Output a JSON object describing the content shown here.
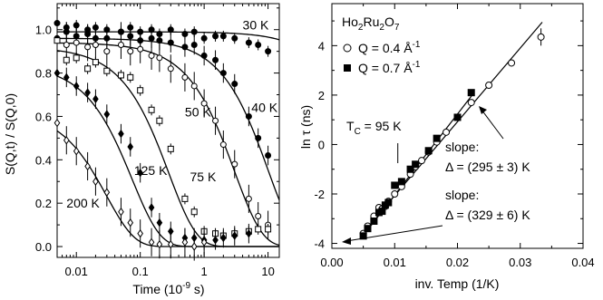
{
  "chart_data": [
    {
      "type": "scatter",
      "xlabel": "Time (10",
      "xlabel_sup": "-9",
      "xlabel_tail": " s)",
      "ylabel": "S(Q,t) / S(Q,0)",
      "xscale": "log",
      "xlim": [
        0.005,
        15
      ],
      "ylim": [
        -0.05,
        1.12
      ],
      "x_ticks": [
        0.01,
        0.1,
        1,
        10
      ],
      "x_tick_labels": [
        "0.01",
        "0.1",
        "1",
        "10"
      ],
      "y_ticks": [
        0.0,
        0.2,
        0.4,
        0.6,
        0.8,
        1.0
      ],
      "y_tick_labels": [
        "0.0",
        "0.2",
        "0.4",
        "0.6",
        "0.8",
        "1.0"
      ],
      "series": [
        {
          "name": "30 K",
          "marker": "filled-circle",
          "label": "30 K",
          "label_at": [
            4.0,
            1.0
          ],
          "fit": {
            "a": 0.99,
            "tau": 400,
            "beta": 1
          },
          "points": [
            [
              0.005,
              1.03
            ],
            [
              0.007,
              1.01
            ],
            [
              0.01,
              1.02
            ],
            [
              0.015,
              1.0
            ],
            [
              0.02,
              1.01
            ],
            [
              0.03,
              1.0
            ],
            [
              0.05,
              0.99
            ],
            [
              0.07,
              1.01
            ],
            [
              0.1,
              0.99
            ],
            [
              0.15,
              1.0
            ],
            [
              0.2,
              0.98
            ],
            [
              0.3,
              1.0
            ],
            [
              0.5,
              0.98
            ],
            [
              0.7,
              0.99
            ],
            [
              1.0,
              0.96
            ],
            [
              1.5,
              0.97
            ],
            [
              2.0,
              0.97
            ],
            [
              3.0,
              0.96
            ],
            [
              5.0,
              0.94
            ],
            [
              7.0,
              0.93
            ],
            [
              10.0,
              0.9
            ]
          ]
        },
        {
          "name": "40 K",
          "marker": "filled-circle",
          "label": "40 K",
          "label_at": [
            5.5,
            0.62
          ],
          "fit": {
            "a": 0.96,
            "tau": 10,
            "beta": 1
          },
          "points": [
            [
              0.005,
              0.96
            ],
            [
              0.007,
              0.99
            ],
            [
              0.01,
              0.97
            ],
            [
              0.015,
              0.98
            ],
            [
              0.02,
              0.96
            ],
            [
              0.03,
              0.96
            ],
            [
              0.05,
              0.99
            ],
            [
              0.07,
              0.97
            ],
            [
              0.1,
              0.95
            ],
            [
              0.15,
              0.96
            ],
            [
              0.2,
              0.95
            ],
            [
              0.3,
              0.94
            ],
            [
              0.5,
              0.92
            ],
            [
              0.7,
              0.93
            ],
            [
              1.0,
              0.88
            ],
            [
              1.5,
              0.86
            ],
            [
              2.0,
              0.8
            ],
            [
              3.0,
              0.75
            ],
            [
              5.0,
              0.6
            ],
            [
              7.0,
              0.5
            ],
            [
              10.0,
              0.42
            ]
          ]
        },
        {
          "name": "50 K",
          "marker": "open-circle",
          "label": "50 K",
          "label_at": [
            0.5,
            0.6
          ],
          "fit": {
            "a": 0.94,
            "tau": 3,
            "beta": 1
          },
          "points": [
            [
              0.005,
              0.95
            ],
            [
              0.007,
              0.93
            ],
            [
              0.01,
              0.94
            ],
            [
              0.015,
              0.92
            ],
            [
              0.02,
              0.93
            ],
            [
              0.03,
              0.9
            ],
            [
              0.05,
              0.93
            ],
            [
              0.07,
              0.9
            ],
            [
              0.1,
              0.91
            ],
            [
              0.15,
              0.88
            ],
            [
              0.2,
              0.87
            ],
            [
              0.3,
              0.82
            ],
            [
              0.5,
              0.78
            ],
            [
              0.7,
              0.74
            ],
            [
              1.0,
              0.66
            ],
            [
              1.5,
              0.58
            ],
            [
              2.0,
              0.47
            ],
            [
              3.0,
              0.38
            ],
            [
              5.0,
              0.22
            ],
            [
              7.0,
              0.14
            ],
            [
              10.0,
              0.1
            ]
          ]
        },
        {
          "name": "75 K",
          "marker": "open-square",
          "label": "75 K",
          "label_at": [
            0.6,
            0.3
          ],
          "fit": {
            "a": 0.92,
            "tau": 0.28,
            "beta": 1
          },
          "points": [
            [
              0.005,
              0.95
            ],
            [
              0.007,
              0.86
            ],
            [
              0.01,
              0.87
            ],
            [
              0.015,
              0.82
            ],
            [
              0.02,
              0.85
            ],
            [
              0.03,
              0.81
            ],
            [
              0.05,
              0.79
            ],
            [
              0.07,
              0.78
            ],
            [
              0.1,
              0.72
            ],
            [
              0.15,
              0.63
            ],
            [
              0.2,
              0.58
            ],
            [
              0.3,
              0.45
            ],
            [
              0.5,
              0.22
            ],
            [
              0.7,
              0.16
            ],
            [
              1.0,
              0.07
            ],
            [
              1.5,
              0.06
            ],
            [
              2.0,
              0.05
            ],
            [
              3.0,
              0.06
            ],
            [
              5.0,
              0.07
            ],
            [
              7.0,
              0.08
            ],
            [
              10.0,
              0.08
            ]
          ]
        },
        {
          "name": "125 K",
          "marker": "filled-diamond",
          "label": "125 K",
          "label_at": [
            0.08,
            0.33
          ],
          "fit": {
            "a": 0.84,
            "tau": 0.075,
            "beta": 1
          },
          "points": [
            [
              0.005,
              0.8
            ],
            [
              0.007,
              0.78
            ],
            [
              0.01,
              0.74
            ],
            [
              0.015,
              0.71
            ],
            [
              0.02,
              0.68
            ],
            [
              0.03,
              0.61
            ],
            [
              0.05,
              0.52
            ],
            [
              0.07,
              0.46
            ],
            [
              0.1,
              0.34
            ],
            [
              0.15,
              0.18
            ],
            [
              0.2,
              0.11
            ],
            [
              0.3,
              0.07
            ],
            [
              0.5,
              0.04
            ],
            [
              0.7,
              0.04
            ],
            [
              1.0,
              0.03
            ],
            [
              1.5,
              0.03
            ],
            [
              2.0,
              0.04
            ],
            [
              3.0,
              0.05
            ],
            [
              5.0,
              0.06
            ]
          ]
        },
        {
          "name": "200 K",
          "marker": "open-diamond",
          "label": "200 K",
          "label_at": [
            0.007,
            0.18
          ],
          "fit": {
            "a": 0.63,
            "tau": 0.03,
            "beta": 1
          },
          "points": [
            [
              0.005,
              0.57
            ],
            [
              0.007,
              0.49
            ],
            [
              0.01,
              0.44
            ],
            [
              0.015,
              0.37
            ],
            [
              0.02,
              0.3
            ],
            [
              0.03,
              0.25
            ],
            [
              0.05,
              0.16
            ],
            [
              0.07,
              0.11
            ],
            [
              0.1,
              0.06
            ],
            [
              0.15,
              0.02
            ],
            [
              0.2,
              0.01
            ],
            [
              0.3,
              0.01
            ],
            [
              0.5,
              0.02
            ],
            [
              0.7,
              0.0
            ],
            [
              1.0,
              0.02
            ]
          ]
        }
      ]
    },
    {
      "type": "scatter",
      "xlabel": "inv. Temp (1/K)",
      "ylabel": "ln τ (ns)",
      "xlim": [
        0.0,
        0.04
      ],
      "ylim": [
        -4.2,
        5.7
      ],
      "x_ticks": [
        0.0,
        0.01,
        0.02,
        0.03,
        0.04
      ],
      "x_tick_labels": [
        "0.00",
        "0.01",
        "0.02",
        "0.03",
        "0.04"
      ],
      "y_ticks": [
        -4,
        -2,
        0,
        2,
        4
      ],
      "y_tick_labels": [
        "-4",
        "-2",
        "0",
        "2",
        "4"
      ],
      "title_parts": [
        "Ho",
        "2",
        "Ru",
        "2",
        "O",
        "7"
      ],
      "legend": [
        {
          "marker": "open-circle",
          "label": "Q = 0.4 Å",
          "sup": "-1"
        },
        {
          "marker": "filled-square",
          "label": "Q = 0.7 Å",
          "sup": "-1"
        }
      ],
      "tc_label": "T",
      "tc_sub": "C",
      "tc_value": " = 95 K",
      "tc_x": 0.0105,
      "slope1_label": "slope:",
      "slope1_value": "Δ = (295 ± 3) K",
      "slope2_label": "slope:",
      "slope2_value": "Δ = (329 ± 6) K",
      "fit_lines": [
        {
          "x1": 0.0048,
          "y1": -3.62,
          "x2": 0.0335,
          "y2": 4.95
        },
        {
          "x1": 0.0048,
          "y1": -3.75,
          "x2": 0.0225,
          "y2": 2.05
        }
      ],
      "series": [
        {
          "name": "Q = 0.4 Å⁻¹",
          "marker": "open-circle",
          "points": [
            [
              0.005,
              -3.6
            ],
            [
              0.0057,
              -3.3
            ],
            [
              0.0067,
              -2.9
            ],
            [
              0.0075,
              -2.55
            ],
            [
              0.008,
              -2.6
            ],
            [
              0.0085,
              -2.5
            ],
            [
              0.009,
              -2.3
            ],
            [
              0.01,
              -2.0
            ],
            [
              0.0111,
              -1.7
            ],
            [
              0.0125,
              -1.2
            ],
            [
              0.0133,
              -0.9
            ],
            [
              0.0143,
              -0.65
            ],
            [
              0.0154,
              -0.3
            ],
            [
              0.0167,
              0.1
            ],
            [
              0.0182,
              0.5
            ],
            [
              0.02,
              1.1
            ],
            [
              0.0222,
              1.7
            ],
            [
              0.025,
              2.4
            ],
            [
              0.0286,
              3.3
            ],
            [
              0.0333,
              4.35
            ]
          ],
          "errors": [
            [
              0.0333,
              0.35
            ]
          ]
        },
        {
          "name": "Q = 0.7 Å⁻¹",
          "marker": "filled-square",
          "points": [
            [
              0.005,
              -3.7
            ],
            [
              0.0057,
              -3.4
            ],
            [
              0.0067,
              -3.1
            ],
            [
              0.0075,
              -2.75
            ],
            [
              0.008,
              -2.7
            ],
            [
              0.0085,
              -2.45
            ],
            [
              0.009,
              -2.35
            ],
            [
              0.01,
              -1.65
            ],
            [
              0.0111,
              -1.5
            ],
            [
              0.0125,
              -1.0
            ],
            [
              0.0133,
              -0.8
            ],
            [
              0.0154,
              -0.25
            ],
            [
              0.0167,
              0.25
            ],
            [
              0.02,
              1.1
            ],
            [
              0.0222,
              2.1
            ]
          ]
        }
      ]
    }
  ]
}
